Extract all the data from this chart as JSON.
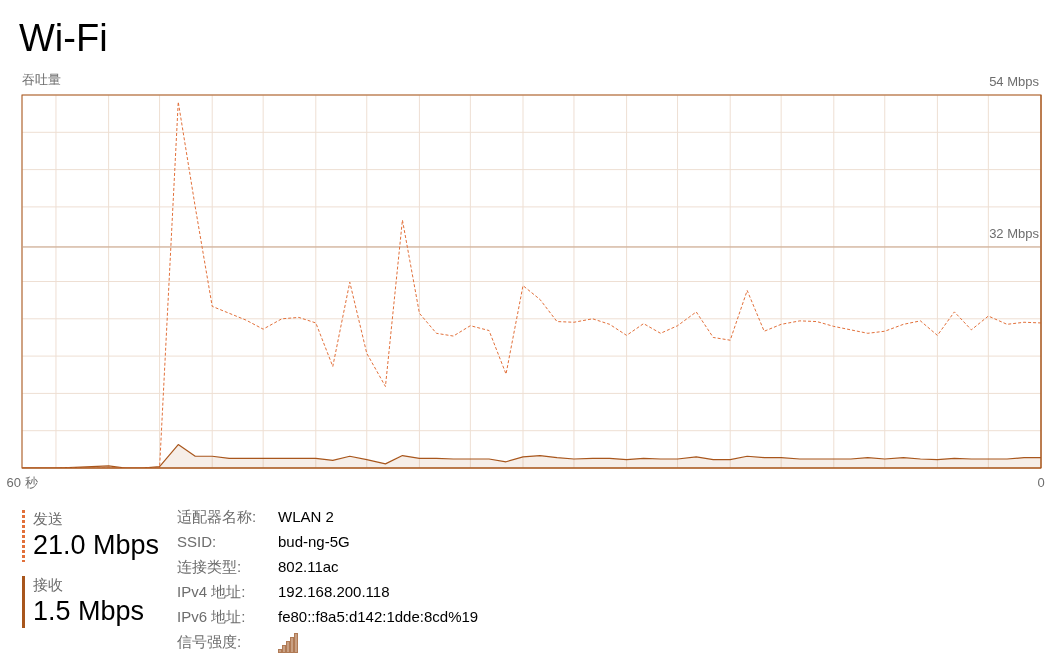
{
  "chart_data": [
    {
      "type": "line",
      "title": "Wi-Fi",
      "ylabel": "吞吐量",
      "x": [
        60,
        59,
        58,
        56.9,
        55.9,
        54.9,
        53.9,
        52.9,
        51.9,
        50.8,
        49.8,
        48.8,
        47.8,
        46.8,
        45.8,
        44.7,
        43.7,
        42.7,
        41.7,
        40.7,
        39.7,
        38.6,
        37.6,
        36.6,
        35.6,
        34.6,
        33.6,
        32.5,
        31.5,
        30.5,
        29.5,
        28.5,
        27.5,
        26.4,
        25.4,
        24.4,
        23.4,
        22.4,
        21.4,
        20.3,
        19.3,
        18.3,
        17.3,
        16.3,
        15.3,
        14.2,
        13.2,
        12.2,
        11.2,
        10.2,
        9.2,
        8.1,
        7.1,
        6.1,
        5.1,
        4.1,
        3.1,
        2,
        1,
        0
      ],
      "series": [
        {
          "name": "发送",
          "color": "#e2703a",
          "line_style": "dashed",
          "values": [
            0,
            0,
            0,
            0,
            0,
            0,
            0,
            0,
            0,
            53.0,
            37.8,
            23.4,
            22.4,
            21.4,
            20.1,
            21.6,
            21.8,
            21.0,
            14.7,
            26.9,
            16.6,
            11.8,
            35.9,
            22.4,
            19.5,
            19.1,
            20.6,
            19.9,
            13.6,
            26.4,
            24.4,
            21.2,
            21.1,
            21.6,
            20.8,
            19.2,
            20.9,
            19.5,
            20.6,
            22.6,
            18.9,
            18.5,
            25.7,
            19.8,
            20.8,
            21.3,
            21.2,
            20.5,
            20.0,
            19.5,
            19.8,
            20.8,
            21.3,
            19.2,
            22.6,
            20.0,
            22.0,
            20.8,
            21.1,
            21.0
          ]
        },
        {
          "name": "接收",
          "color": "#a8561c",
          "type": "area",
          "line_style": "solid",
          "values": [
            0,
            0,
            0,
            0.1,
            0.2,
            0.3,
            0,
            0,
            0.2,
            3.4,
            1.7,
            1.7,
            1.4,
            1.4,
            1.4,
            1.4,
            1.4,
            1.4,
            1.1,
            1.7,
            1.2,
            0.6,
            1.8,
            1.4,
            1.4,
            1.3,
            1.3,
            1.3,
            0.9,
            1.6,
            1.8,
            1.5,
            1.3,
            1.4,
            1.4,
            1.2,
            1.4,
            1.3,
            1.3,
            1.6,
            1.2,
            1.2,
            1.7,
            1.5,
            1.5,
            1.3,
            1.3,
            1.3,
            1.3,
            1.5,
            1.3,
            1.5,
            1.3,
            1.2,
            1.4,
            1.3,
            1.3,
            1.3,
            1.5,
            1.5
          ]
        }
      ],
      "xlim": [
        60,
        0
      ],
      "xticks": [
        {
          "value": 60,
          "label": "60 秒"
        },
        {
          "value": 58,
          "label": null
        },
        {
          "value": 54.9,
          "label": null
        },
        {
          "value": 51.9,
          "label": null
        },
        {
          "value": 48.8,
          "label": null
        },
        {
          "value": 45.8,
          "label": null
        },
        {
          "value": 42.7,
          "label": null
        },
        {
          "value": 39.7,
          "label": null
        },
        {
          "value": 36.6,
          "label": null
        },
        {
          "value": 33.6,
          "label": null
        },
        {
          "value": 30.5,
          "label": null
        },
        {
          "value": 27.5,
          "label": null
        },
        {
          "value": 24.4,
          "label": null
        },
        {
          "value": 21.4,
          "label": null
        },
        {
          "value": 18.3,
          "label": null
        },
        {
          "value": 15.3,
          "label": null
        },
        {
          "value": 12.2,
          "label": null
        },
        {
          "value": 9.2,
          "label": null
        },
        {
          "value": 6.1,
          "label": null
        },
        {
          "value": 3.1,
          "label": null
        },
        0
      ],
      "ylim": [
        0,
        54
      ],
      "yticks": [
        {
          "value": 5.4,
          "label": null
        },
        {
          "value": 10.8,
          "label": null
        },
        {
          "value": 16.2,
          "label": null
        },
        {
          "value": 21.6,
          "label": null
        },
        {
          "value": 27,
          "label": null
        },
        {
          "value": 32,
          "label": "32 Mbps"
        },
        {
          "value": 37.8,
          "label": null
        },
        {
          "value": 43.2,
          "label": null
        },
        {
          "value": 48.6,
          "label": null
        },
        {
          "value": 54,
          "label": "54 Mbps"
        }
      ],
      "ref_lines": [
        {
          "axis": "y",
          "value": 32,
          "color": "#c9a68b"
        }
      ],
      "grid": true,
      "legend": "bottom left",
      "annotations": [
        "21.0 Mbps",
        "1.5 Mbps"
      ]
    },
    {
      "type": "other",
      "annotations": [
        "适配器名称:",
        "WLAN 2",
        "SSID:",
        "bud-ng-5G",
        "连接类型:",
        "802.11ac",
        "IPv4 地址:",
        "192.168.200.118",
        "IPv6 地址:",
        "fe80::f8a5:d142:1dde:8cd%19",
        "信号强度:"
      ]
    }
  ]
}
